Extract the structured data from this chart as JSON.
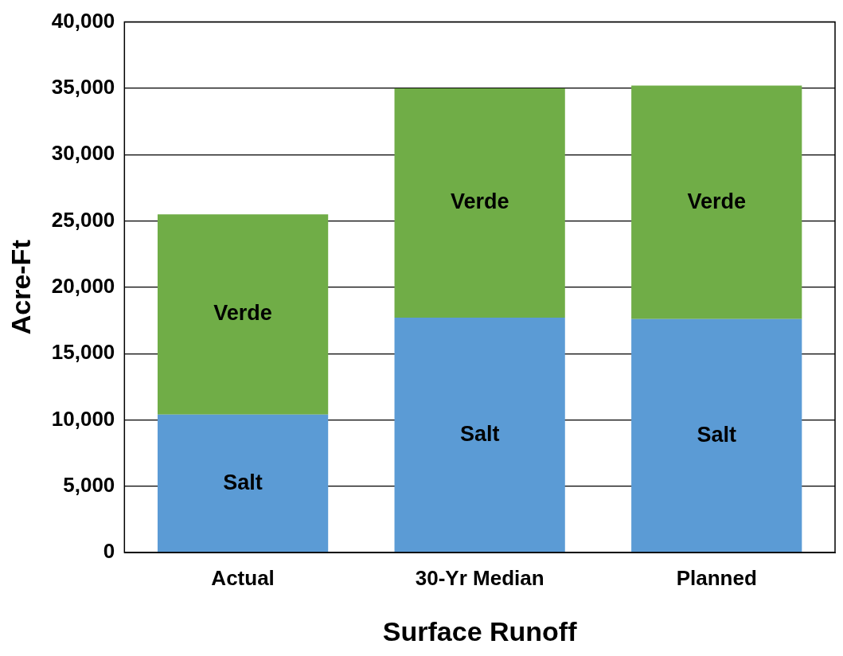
{
  "chart_data": {
    "type": "bar",
    "xlabel": "Surface Runoff",
    "ylabel": "Acre-Ft",
    "categories": [
      "Actual",
      "30-Yr Median",
      "Planned"
    ],
    "stacked": true,
    "series": [
      {
        "name": "Salt",
        "color": "#5b9bd5",
        "values": [
          10400,
          17700,
          17600
        ]
      },
      {
        "name": "Verde",
        "color": "#70ad47",
        "values": [
          15100,
          17300,
          17600
        ]
      }
    ],
    "ylim": [
      0,
      40000
    ],
    "yticks": [
      {
        "value": 0,
        "label": "0"
      },
      {
        "value": 5000,
        "label": "5,000"
      },
      {
        "value": 10000,
        "label": "10,000"
      },
      {
        "value": 15000,
        "label": "15,000"
      },
      {
        "value": 20000,
        "label": "20,000"
      },
      {
        "value": 25000,
        "label": "25,000"
      },
      {
        "value": 30000,
        "label": "30,000"
      },
      {
        "value": 35000,
        "label": "35,000"
      },
      {
        "value": 40000,
        "label": "40,000"
      }
    ],
    "grid": "y",
    "legend": false
  }
}
